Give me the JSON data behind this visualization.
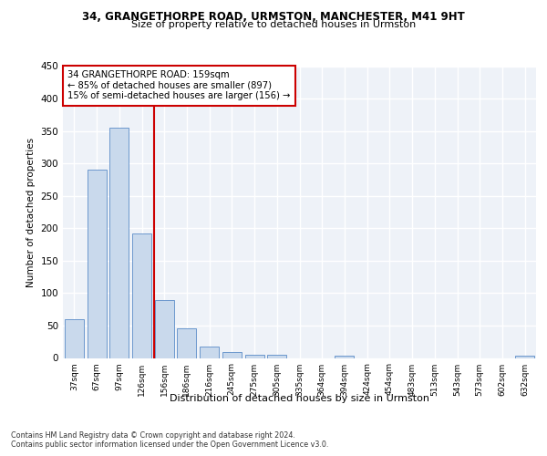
{
  "title_line1": "34, GRANGETHORPE ROAD, URMSTON, MANCHESTER, M41 9HT",
  "title_line2": "Size of property relative to detached houses in Urmston",
  "xlabel": "Distribution of detached houses by size in Urmston",
  "ylabel": "Number of detached properties",
  "bar_labels": [
    "37sqm",
    "67sqm",
    "97sqm",
    "126sqm",
    "156sqm",
    "186sqm",
    "216sqm",
    "245sqm",
    "275sqm",
    "305sqm",
    "335sqm",
    "364sqm",
    "394sqm",
    "424sqm",
    "454sqm",
    "483sqm",
    "513sqm",
    "543sqm",
    "573sqm",
    "602sqm",
    "632sqm"
  ],
  "bar_values": [
    60,
    290,
    355,
    192,
    90,
    46,
    18,
    9,
    5,
    5,
    0,
    0,
    4,
    0,
    0,
    0,
    0,
    0,
    0,
    0,
    4
  ],
  "bar_color": "#c9d9ec",
  "bar_edge_color": "#5b8cc8",
  "annotation_text": "34 GRANGETHORPE ROAD: 159sqm\n← 85% of detached houses are smaller (897)\n15% of semi-detached houses are larger (156) →",
  "vline_x": 3.55,
  "vline_color": "#cc0000",
  "annotation_box_color": "#cc0000",
  "ylim": [
    0,
    450
  ],
  "yticks": [
    0,
    50,
    100,
    150,
    200,
    250,
    300,
    350,
    400,
    450
  ],
  "footnote": "Contains HM Land Registry data © Crown copyright and database right 2024.\nContains public sector information licensed under the Open Government Licence v3.0.",
  "background_color": "#eef2f8",
  "grid_color": "#ffffff"
}
